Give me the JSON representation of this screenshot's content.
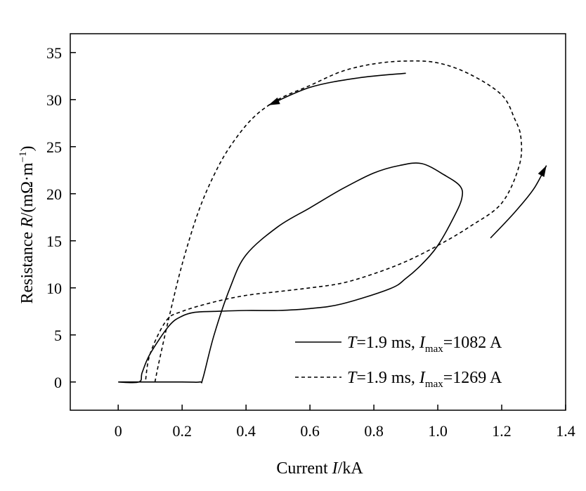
{
  "chart_data": {
    "type": "line",
    "title": "",
    "xlabel": {
      "pre": "Current ",
      "italic": "I",
      "post": "/kA"
    },
    "ylabel": {
      "pre": "Resistance ",
      "italic": "R",
      "post": "/(mΩ·m",
      "sup": "−1",
      "close": ")"
    },
    "xlim": [
      -0.15,
      1.4
    ],
    "ylim": [
      -3,
      37
    ],
    "xticks": [
      0,
      0.2,
      0.4,
      0.6,
      0.8,
      1.0,
      1.2,
      1.4
    ],
    "xtick_labels": [
      "0",
      "0.2",
      "0.4",
      "0.6",
      "0.8",
      "1.0",
      "1.2",
      "1.4"
    ],
    "yticks": [
      0,
      5,
      10,
      15,
      20,
      25,
      30,
      35
    ],
    "ytick_labels": [
      "0",
      "5",
      "10",
      "15",
      "20",
      "25",
      "30",
      "35"
    ],
    "grid": false,
    "legend_position": "bottom-right",
    "series": [
      {
        "legend": {
          "T": "T",
          "t_rest": "=1.9 ms, ",
          "I": "I",
          "sub": "max",
          "i_rest": "=1082 A"
        },
        "line_style": "solid",
        "color": "#000000",
        "x": [
          0.0,
          0.2,
          0.255,
          0.265,
          0.3,
          0.35,
          0.4,
          0.5,
          0.6,
          0.7,
          0.8,
          0.88,
          0.95,
          1.02,
          1.07,
          1.075,
          1.05,
          1.0,
          0.95,
          0.9,
          0.85,
          0.7,
          0.6,
          0.5,
          0.4,
          0.3,
          0.24,
          0.2,
          0.16,
          0.1,
          0.075,
          0.065,
          0.0
        ],
        "y": [
          0.0,
          0.0,
          0.0,
          0.4,
          5.0,
          10.0,
          13.5,
          16.5,
          18.5,
          20.5,
          22.2,
          23.0,
          23.2,
          22.0,
          20.8,
          19.5,
          17.5,
          14.5,
          12.5,
          11.0,
          9.9,
          8.3,
          7.8,
          7.6,
          7.6,
          7.5,
          7.4,
          7.0,
          6.0,
          3.0,
          1.0,
          0.0,
          0.0
        ]
      },
      {
        "legend": {
          "T": "T",
          "t_rest": "=1.9 ms, ",
          "I": "I",
          "sub": "max",
          "i_rest": "=1269 A"
        },
        "line_style": "dashed",
        "color": "#000000",
        "x": [
          0.115,
          0.13,
          0.16,
          0.2,
          0.25,
          0.3,
          0.35,
          0.42,
          0.5,
          0.6,
          0.7,
          0.8,
          0.9,
          1.0,
          1.1,
          1.2,
          1.24,
          1.26,
          1.255,
          1.2,
          1.1,
          1.0,
          0.9,
          0.8,
          0.7,
          0.6,
          0.5,
          0.4,
          0.3,
          0.2,
          0.15,
          0.1,
          0.085
        ],
        "y": [
          0.0,
          2.5,
          7.0,
          12.5,
          18.0,
          22.0,
          25.0,
          28.0,
          30.0,
          31.5,
          33.0,
          33.8,
          34.1,
          33.9,
          32.7,
          30.5,
          28.0,
          26.0,
          23.0,
          19.0,
          16.5,
          14.5,
          12.8,
          11.5,
          10.5,
          10.0,
          9.6,
          9.2,
          8.5,
          7.5,
          6.5,
          3.0,
          0.0
        ]
      }
    ],
    "arrows": [
      {
        "x": [
          0.9,
          0.75,
          0.6,
          0.47
        ],
        "y": [
          32.8,
          32.3,
          31.3,
          29.4
        ]
      },
      {
        "x": [
          1.165,
          1.24,
          1.3,
          1.34
        ],
        "y": [
          15.3,
          18.0,
          20.5,
          23.0
        ]
      }
    ]
  }
}
